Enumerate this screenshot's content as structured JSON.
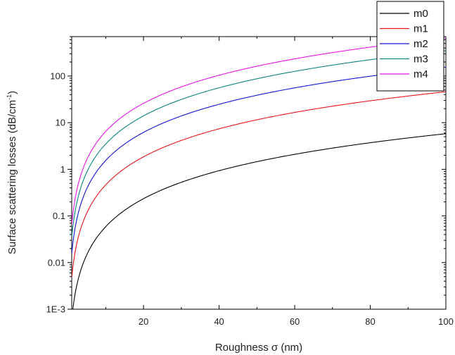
{
  "chart_data": {
    "type": "line",
    "xlabel": "Roughness σ (nm)",
    "ylabel_main": "Surface scattering losses (dB/cm",
    "ylabel_sup": "-1",
    "ylabel_close": ")",
    "xlim": [
      1,
      100
    ],
    "ylim": [
      0.001,
      700
    ],
    "yscale": "log",
    "xticks": [
      20,
      40,
      60,
      80,
      100
    ],
    "xtick_labels": [
      "20",
      "40",
      "60",
      "80",
      "100"
    ],
    "yticks": [
      0.001,
      0.01,
      0.1,
      1,
      10,
      100
    ],
    "ytick_labels": [
      "1E-3",
      "0.01",
      "0.1",
      "1",
      "10",
      "100"
    ],
    "grid": false,
    "legend_position": "top-right",
    "series": [
      {
        "name": "m0",
        "color": "#000000",
        "x": [
          1,
          100
        ],
        "y": [
          0.0006,
          5.8
        ]
      },
      {
        "name": "m1",
        "color": "#e8141c",
        "x": [
          1,
          100
        ],
        "y": [
          0.0047,
          46
        ]
      },
      {
        "name": "m2",
        "color": "#1414d2",
        "x": [
          1,
          100
        ],
        "y": [
          0.0155,
          155
        ]
      },
      {
        "name": "m3",
        "color": "#0b8580",
        "x": [
          1,
          100
        ],
        "y": [
          0.035,
          350
        ]
      },
      {
        "name": "m4",
        "color": "#e814e8",
        "x": [
          1,
          100
        ],
        "y": [
          0.065,
          650
        ]
      }
    ]
  }
}
